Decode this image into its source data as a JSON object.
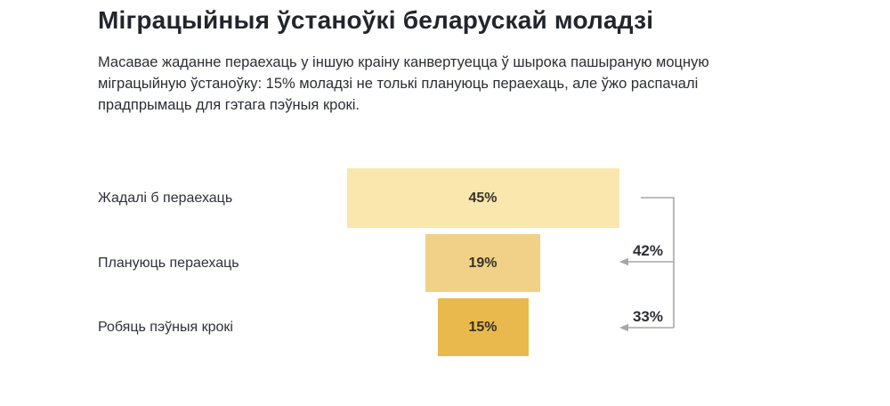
{
  "page": {
    "title": "Міграцыйныя ўстаноўкі беларускай моладзі",
    "subtitle": "Масавае жаданне пераехаць у іншую краіну канвертуецца ў шырока пашыраную моцную міграцыйную ўстаноўку: 15% моладзі не толькі плануюць пераехаць, але ўжо распачалі прадпрымаць для гэтага пэўныя крокі."
  },
  "colors": {
    "title_text": "#23252c",
    "body_text": "#2b2e36",
    "bar_light": "#f9e7ae",
    "bar_medium": "#f0d187",
    "bar_dark": "#e9b94e",
    "connector_gray": "#a7a7a7"
  },
  "chart_data": {
    "type": "bar",
    "subtype": "horizontal-centered-funnel",
    "categories": [
      "Жадалі б пераехаць",
      "Плануюць пераехаць",
      "Робяць пэўныя крокі"
    ],
    "values": [
      45,
      19,
      15
    ],
    "value_labels": [
      "45%",
      "19%",
      "15%"
    ],
    "bar_colors": [
      "#f9e7ae",
      "#f0d187",
      "#e9b94e"
    ],
    "xlim": [
      0,
      100
    ],
    "grid": false,
    "legend": false,
    "annotations": [
      {
        "label": "42%",
        "meaning": "conversion from 'Жадалі б пераехаць' to 'Плануюць пераехаць'"
      },
      {
        "label": "33%",
        "meaning": "conversion from 'Жадалі б пераехаць' to 'Робяць пэўныя крокі'"
      }
    ]
  }
}
